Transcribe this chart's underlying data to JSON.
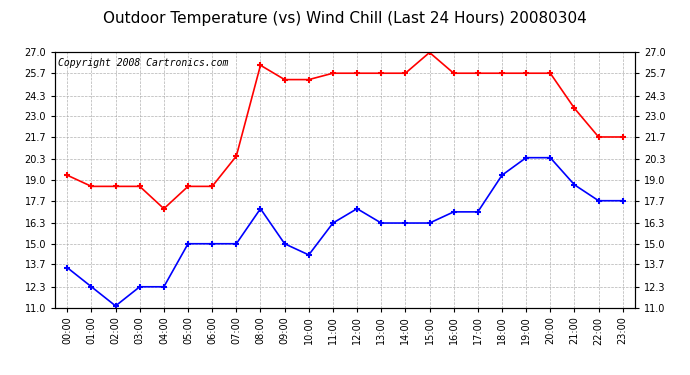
{
  "title": "Outdoor Temperature (vs) Wind Chill (Last 24 Hours) 20080304",
  "copyright_text": "Copyright 2008 Cartronics.com",
  "hours": [
    0,
    1,
    2,
    3,
    4,
    5,
    6,
    7,
    8,
    9,
    10,
    11,
    12,
    13,
    14,
    15,
    16,
    17,
    18,
    19,
    20,
    21,
    22,
    23
  ],
  "red_data": [
    19.3,
    18.6,
    18.6,
    18.6,
    17.2,
    18.6,
    18.6,
    20.5,
    26.2,
    25.3,
    25.3,
    25.7,
    25.7,
    25.7,
    25.7,
    27.0,
    25.7,
    25.7,
    25.7,
    25.7,
    25.7,
    23.5,
    21.7,
    21.7
  ],
  "blue_data": [
    13.5,
    12.3,
    11.1,
    12.3,
    12.3,
    15.0,
    15.0,
    15.0,
    17.2,
    15.0,
    14.3,
    16.3,
    17.2,
    16.3,
    16.3,
    16.3,
    17.0,
    17.0,
    19.3,
    20.4,
    20.4,
    18.7,
    17.7,
    17.7
  ],
  "ylim": [
    11.0,
    27.0
  ],
  "yticks": [
    11.0,
    12.3,
    13.7,
    15.0,
    16.3,
    17.7,
    19.0,
    20.3,
    21.7,
    23.0,
    24.3,
    25.7,
    27.0
  ],
  "red_color": "#ff0000",
  "blue_color": "#0000ff",
  "plot_bg": "#ffffff",
  "outer_bg": "#ffffff",
  "grid_color": "#aaaaaa",
  "title_fontsize": 11,
  "copyright_fontsize": 7,
  "tick_fontsize": 7
}
